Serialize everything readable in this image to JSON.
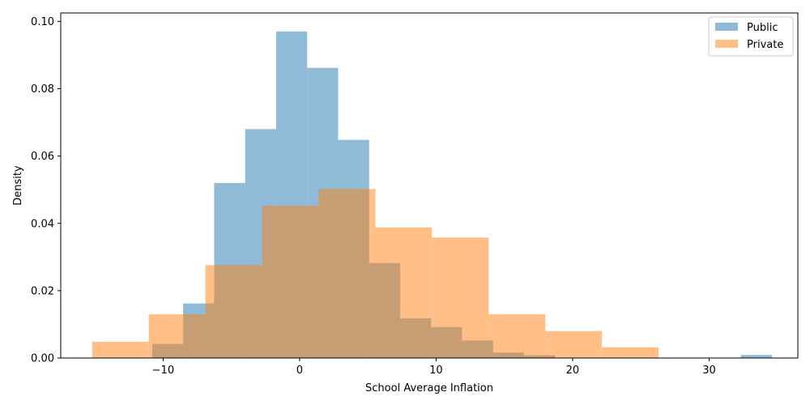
{
  "chart_data": {
    "type": "histogram",
    "xlabel": "School Average Inflation",
    "ylabel": "Density",
    "xlim": [
      -17.5,
      36.5
    ],
    "ylim": [
      0,
      0.1025
    ],
    "xticks": [
      -10,
      0,
      10,
      20,
      30
    ],
    "yticks": [
      0.0,
      0.02,
      0.04,
      0.06,
      0.08,
      0.1
    ],
    "xtick_labels": [
      "−10",
      "0",
      "10",
      "20",
      "30"
    ],
    "ytick_labels": [
      "0.00",
      "0.02",
      "0.04",
      "0.06",
      "0.08",
      "0.10"
    ],
    "legend_position": "top-right",
    "grid": false,
    "series": [
      {
        "name": "Public",
        "color": "#1f77b4",
        "opacity": 0.5,
        "bin_edges": [
          -10.8,
          -8.53,
          -6.26,
          -3.99,
          -1.72,
          0.55,
          2.82,
          5.09,
          7.36,
          9.63,
          11.9,
          14.17,
          16.44,
          18.71,
          20.98,
          23.25,
          25.52,
          27.79,
          30.06,
          32.33,
          34.6
        ],
        "values": [
          0.0042,
          0.0162,
          0.052,
          0.068,
          0.097,
          0.0862,
          0.0648,
          0.0282,
          0.0118,
          0.0092,
          0.0052,
          0.0016,
          0.0008,
          0.0,
          0.0,
          0.0,
          0.0,
          0.0,
          0.0,
          0.0009
        ]
      },
      {
        "name": "Private",
        "color": "#ff7f0e",
        "opacity": 0.5,
        "bin_edges": [
          -15.2,
          -11.05,
          -6.9,
          -2.75,
          1.4,
          5.55,
          9.7,
          13.85,
          18.0,
          22.15,
          26.3
        ],
        "values": [
          0.0048,
          0.013,
          0.0276,
          0.0452,
          0.0502,
          0.0388,
          0.0358,
          0.013,
          0.008,
          0.0032
        ]
      }
    ]
  }
}
